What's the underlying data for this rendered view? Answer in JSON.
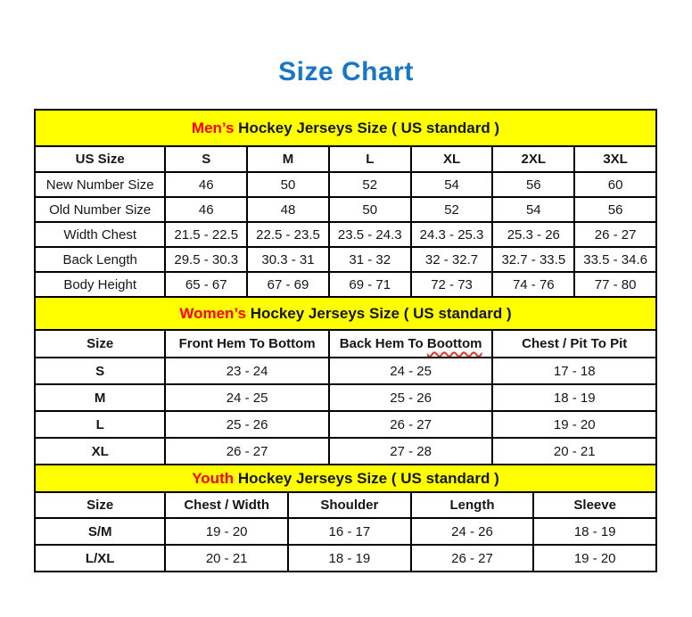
{
  "page": {
    "title": "Size Chart"
  },
  "colors": {
    "title_blue": "#1776c5",
    "band_yellow": "#ffff00",
    "highlight_red": "#ff0000",
    "squiggle_red": "#e0352b",
    "border_black": "#000000",
    "background": "#ffffff"
  },
  "sections": [
    {
      "name": "mens",
      "title_highlight": "Men’s",
      "title_rest": " Hockey Jerseys Size ( US standard )",
      "columns": [
        "US Size",
        "S",
        "M",
        "L",
        "XL",
        "2XL",
        "3XL"
      ],
      "row_label_bold": false,
      "rows": [
        [
          "New Number Size",
          "46",
          "50",
          "52",
          "54",
          "56",
          "60"
        ],
        [
          "Old Number Size",
          "46",
          "48",
          "50",
          "52",
          "54",
          "56"
        ],
        [
          "Width Chest",
          "21.5 - 22.5",
          "22.5 - 23.5",
          "23.5 - 24.3",
          "24.3 - 25.3",
          "25.3 - 26",
          "26 - 27"
        ],
        [
          "Back Length",
          "29.5 - 30.3",
          "30.3 - 31",
          "31 - 32",
          "32 - 32.7",
          "32.7 - 33.5",
          "33.5 - 34.6"
        ],
        [
          "Body Height",
          "65 - 67",
          "67 - 69",
          "69 - 71",
          "72 - 73",
          "74 - 76",
          "77 - 80"
        ]
      ]
    },
    {
      "name": "womens",
      "title_highlight": "Women’s",
      "title_rest": " Hockey Jerseys Size ( US standard )",
      "columns": [
        "Size",
        "Front Hem To Bottom",
        "Back Hem To Boottom",
        "Chest / Pit To Pit"
      ],
      "squiggle": {
        "col": 2,
        "word": "Boottom"
      },
      "row_label_bold": true,
      "rows": [
        [
          "S",
          "23 - 24",
          "24 - 25",
          "17 - 18"
        ],
        [
          "M",
          "24 - 25",
          "25 - 26",
          "18 - 19"
        ],
        [
          "L",
          "25 - 26",
          "26 - 27",
          "19 - 20"
        ],
        [
          "XL",
          "26 - 27",
          "27 - 28",
          "20 - 21"
        ]
      ]
    },
    {
      "name": "youth",
      "title_highlight": "Youth",
      "title_rest": " Hockey Jerseys Size ( US standard )",
      "columns": [
        "Size",
        "Chest / Width",
        "Shoulder",
        "Length",
        "Sleeve"
      ],
      "row_label_bold": true,
      "rows": [
        [
          "S/M",
          "19 - 20",
          "16 - 17",
          "24 - 26",
          "18 - 19"
        ],
        [
          "L/XL",
          "20 - 21",
          "18 - 19",
          "26 - 27",
          "19 - 20"
        ]
      ]
    }
  ]
}
